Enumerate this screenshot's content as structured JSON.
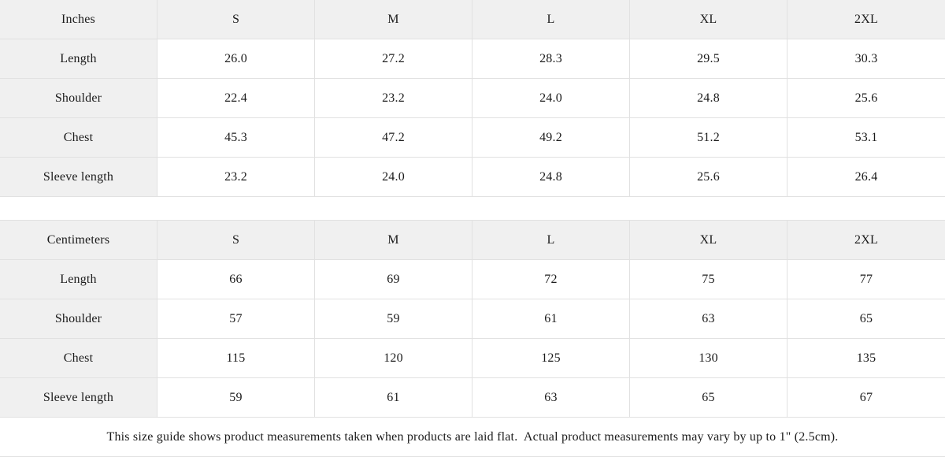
{
  "colors": {
    "page_bg": "#ffffff",
    "header_bg": "#f0f0f0",
    "cell_bg": "#ffffff",
    "border": "#e1e1e1",
    "text": "#1b1b1b"
  },
  "tables": [
    {
      "unit_label": "Inches",
      "sizes": [
        "S",
        "M",
        "L",
        "XL",
        "2XL"
      ],
      "rows": [
        {
          "label": "Length",
          "values": [
            "26.0",
            "27.2",
            "28.3",
            "29.5",
            "30.3"
          ]
        },
        {
          "label": "Shoulder",
          "values": [
            "22.4",
            "23.2",
            "24.0",
            "24.8",
            "25.6"
          ]
        },
        {
          "label": "Chest",
          "values": [
            "45.3",
            "47.2",
            "49.2",
            "51.2",
            "53.1"
          ]
        },
        {
          "label": "Sleeve length",
          "values": [
            "23.2",
            "24.0",
            "24.8",
            "25.6",
            "26.4"
          ]
        }
      ]
    },
    {
      "unit_label": "Centimeters",
      "sizes": [
        "S",
        "M",
        "L",
        "XL",
        "2XL"
      ],
      "rows": [
        {
          "label": "Length",
          "values": [
            "66",
            "69",
            "72",
            "75",
            "77"
          ]
        },
        {
          "label": "Shoulder",
          "values": [
            "57",
            "59",
            "61",
            "63",
            "65"
          ]
        },
        {
          "label": "Chest",
          "values": [
            "115",
            "120",
            "125",
            "130",
            "135"
          ]
        },
        {
          "label": "Sleeve length",
          "values": [
            "59",
            "61",
            "63",
            "65",
            "67"
          ]
        }
      ]
    }
  ],
  "footnote": "This size guide shows product measurements taken when products are laid flat.  Actual product measurements may vary by up to 1\" (2.5cm)."
}
